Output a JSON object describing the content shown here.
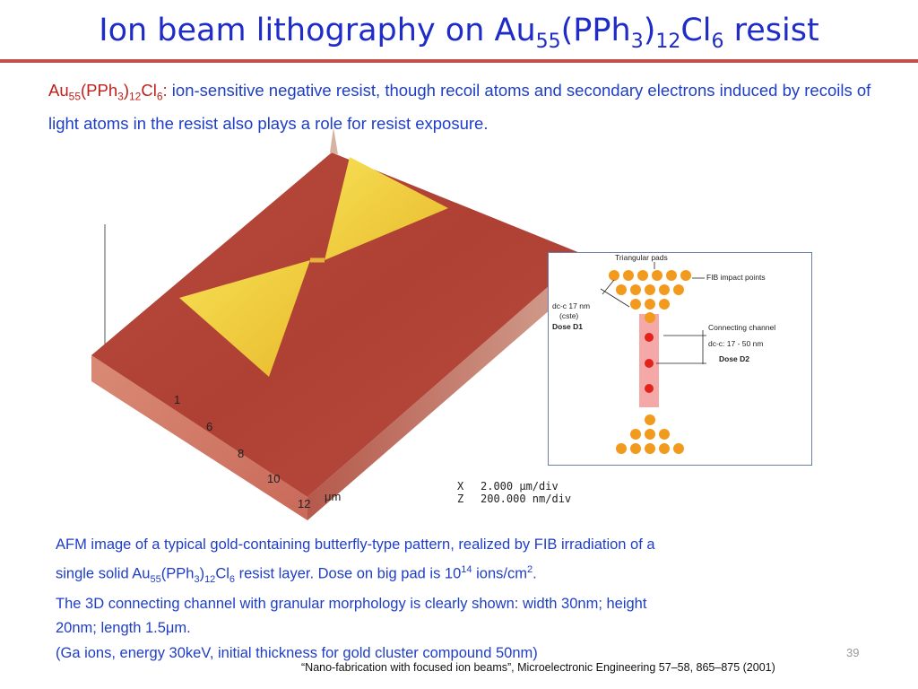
{
  "title": {
    "prefix": "Ion beam lithography on Au",
    "s1": "55",
    "mid1": "(PPh",
    "s2": "3",
    "mid2": ")",
    "s3": "12",
    "mid3": "Cl",
    "s4": "6",
    "suffix": " resist"
  },
  "intro": {
    "chem_a": "Au",
    "chem_s1": "55",
    "chem_b": "(PPh",
    "chem_s2": "3",
    "chem_c": ")",
    "chem_s3": "12",
    "chem_d": "Cl",
    "chem_s4": "6",
    "chem_e": ":",
    "text": " ion-sensitive negative resist, though recoil atoms and secondary electrons induced by recoils of light atoms in the resist also plays a role for resist exposure."
  },
  "afm": {
    "x_ticks": [
      "1",
      "6",
      "8",
      "10",
      "12"
    ],
    "unit": "μm",
    "scale_x_label": "X",
    "scale_x_value": "2.000 μm/div",
    "scale_z_label": "Z",
    "scale_z_value": "200.000 nm/div",
    "colors": {
      "substrate": "#b94a3e",
      "pad": "#f2d03a"
    }
  },
  "schematic": {
    "title": "Triangular pads",
    "fib_label": "FIB impact points",
    "dc1": "dc-c 17 nm",
    "dc1b": "(cste)",
    "dose1": "Dose D1",
    "channel_label": "Connecting channel",
    "dc2": "dc-c: 17 - 50 nm",
    "dose2": "Dose D2",
    "colors": {
      "dot": "#f29a1e",
      "channel_dot": "#e2231a",
      "channel": "#f4a8a8"
    }
  },
  "caption": {
    "l1": "AFM image of a typical gold-containing butterfly-type pattern, realized by FIB irradiation of a",
    "l2a": "single solid Au",
    "l2s1": "55",
    "l2b": "(PPh",
    "l2s2": "3",
    "l2c": ")",
    "l2s3": "12",
    "l2d": "Cl",
    "l2s4": "6",
    "l2e": " resist layer. Dose on big pad is 10",
    "l2sup1": "14",
    "l2f": " ions/cm",
    "l2sup2": "2",
    "l2g": ".",
    "l3": "The 3D connecting channel with granular morphology is clearly shown: width 30nm; height",
    "l4": "20nm; length 1.5μm.",
    "l5": "(Ga ions, energy 30keV, initial thickness for gold cluster compound 50nm)"
  },
  "page_number": "39",
  "reference": "“Nano-fabrication with focused ion beams”, Microelectronic Engineering 57–58, 865–875 (2001)"
}
